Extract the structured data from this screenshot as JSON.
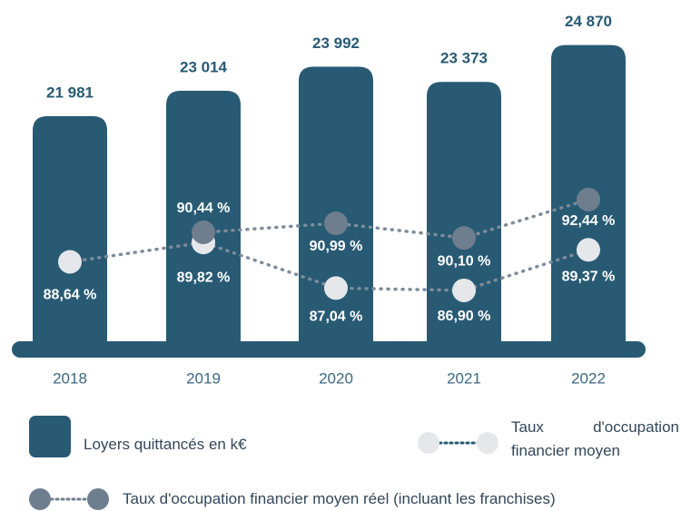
{
  "chart_data": {
    "type": "bar",
    "categories": [
      "2018",
      "2019",
      "2020",
      "2021",
      "2022"
    ],
    "values": [
      21981,
      23014,
      23992,
      23373,
      24870
    ],
    "value_labels": [
      "21 981",
      "23 014",
      "23 992",
      "23 373",
      "24 870"
    ],
    "name": "Loyers quittancés en k€",
    "color": "#285a74",
    "ylim": [
      12500,
      25300
    ],
    "y2lim": [
      83.3,
      102.5
    ],
    "series": [
      {
        "name": "Taux d'occupation financier moyen",
        "color": "#e5e7eb",
        "axis": "y2",
        "values": [
          88.64,
          89.82,
          87.04,
          86.9,
          89.37
        ],
        "value_labels": [
          "88,64 %",
          "89,82 %",
          "87,04 %",
          "86,90 %",
          "89,37 %"
        ]
      },
      {
        "name": "Taux d'occupation financier moyen réel (incluant les franchises)",
        "color": "#6e7e8e",
        "axis": "y2",
        "values": [
          null,
          90.44,
          90.99,
          90.1,
          92.44
        ],
        "value_labels": [
          null,
          "90,44 %",
          "90,99 %",
          "90,10 %",
          "92,44 %"
        ]
      }
    ]
  }
}
